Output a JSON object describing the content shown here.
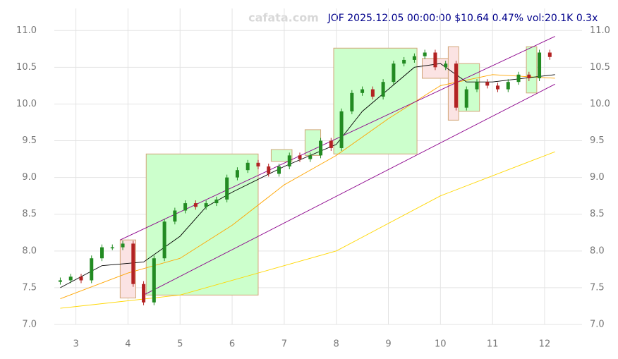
{
  "chart_data": {
    "type": "candlestick",
    "title": "JOF 2025.12.05 00:00:00 $10.64 0.47% vol:20.1K 0.3x",
    "watermark": "cafata.com",
    "x": [
      2.7,
      2.9,
      3.1,
      3.3,
      3.5,
      3.7,
      3.9,
      4.1,
      4.3,
      4.5,
      4.7,
      4.9,
      5.1,
      5.3,
      5.5,
      5.7,
      5.9,
      6.1,
      6.3,
      6.5,
      6.7,
      6.9,
      7.1,
      7.3,
      7.5,
      7.7,
      7.9,
      8.1,
      8.3,
      8.5,
      8.7,
      8.9,
      9.1,
      9.3,
      9.5,
      9.7,
      9.9,
      10.1,
      10.3,
      10.5,
      10.7,
      10.9,
      11.1,
      11.3,
      11.5,
      11.7,
      11.9,
      12.1
    ],
    "open": [
      7.58,
      7.6,
      7.65,
      7.6,
      7.9,
      8.05,
      8.05,
      8.1,
      7.55,
      7.3,
      7.9,
      8.4,
      8.55,
      8.65,
      8.6,
      8.65,
      8.7,
      9.0,
      9.1,
      9.2,
      9.15,
      9.05,
      9.15,
      9.3,
      9.25,
      9.3,
      9.5,
      9.4,
      9.9,
      10.15,
      10.2,
      10.1,
      10.3,
      10.55,
      10.6,
      10.65,
      10.7,
      10.5,
      10.55,
      9.95,
      10.2,
      10.3,
      10.25,
      10.2,
      10.3,
      10.4,
      10.35,
      10.7
    ],
    "close": [
      7.6,
      7.65,
      7.6,
      7.9,
      8.05,
      8.05,
      8.1,
      7.55,
      7.3,
      7.9,
      8.4,
      8.55,
      8.65,
      8.6,
      8.65,
      8.7,
      9.0,
      9.1,
      9.2,
      9.15,
      9.05,
      9.15,
      9.3,
      9.25,
      9.3,
      9.5,
      9.4,
      9.9,
      10.15,
      10.2,
      10.1,
      10.3,
      10.55,
      10.6,
      10.65,
      10.7,
      10.5,
      10.55,
      9.95,
      10.2,
      10.3,
      10.25,
      10.2,
      10.3,
      10.4,
      10.35,
      10.7,
      10.64
    ],
    "up_color": "#228b22",
    "down_color": "#b22222",
    "boxes": [
      {
        "x": [
          3.85,
          4.15
        ],
        "y": [
          7.36,
          8.15
        ],
        "color": "#fbe3e3"
      },
      {
        "x": [
          4.35,
          6.5
        ],
        "y": [
          7.4,
          9.32
        ],
        "color": "#ccffcc"
      },
      {
        "x": [
          6.75,
          7.15
        ],
        "y": [
          9.22,
          9.38
        ],
        "color": "#ccffcc"
      },
      {
        "x": [
          7.4,
          7.7
        ],
        "y": [
          9.3,
          9.65
        ],
        "color": "#ccffcc"
      },
      {
        "x": [
          7.95,
          9.55
        ],
        "y": [
          9.32,
          10.76
        ],
        "color": "#ccffcc"
      },
      {
        "x": [
          9.65,
          10.3
        ],
        "y": [
          10.35,
          10.62
        ],
        "color": "#fbe3e3"
      },
      {
        "x": [
          10.15,
          10.35
        ],
        "y": [
          9.78,
          10.78
        ],
        "color": "#fbe3e3"
      },
      {
        "x": [
          10.35,
          10.75
        ],
        "y": [
          9.9,
          10.55
        ],
        "color": "#ccffcc"
      },
      {
        "x": [
          11.65,
          11.85
        ],
        "y": [
          10.15,
          10.78
        ],
        "color": "#ccffcc"
      }
    ],
    "lines": [
      {
        "color": "#ffd700",
        "x": [
          2.7,
          5,
          8,
          10,
          12.2
        ],
        "values": [
          7.22,
          7.4,
          8.0,
          8.75,
          9.35
        ]
      },
      {
        "color": "#ffa500",
        "x": [
          2.7,
          4,
          5,
          6,
          7,
          8,
          9,
          10,
          11,
          12.2
        ],
        "values": [
          7.35,
          7.7,
          7.9,
          8.35,
          8.9,
          9.3,
          9.8,
          10.25,
          10.4,
          10.35
        ]
      },
      {
        "color": "#000000",
        "x": [
          2.7,
          3.5,
          4.3,
          5,
          5.5,
          6,
          7,
          8,
          8.5,
          9,
          9.5,
          10,
          10.5,
          11,
          12.2
        ],
        "values": [
          7.5,
          7.8,
          7.85,
          8.2,
          8.6,
          8.8,
          9.15,
          9.45,
          9.9,
          10.2,
          10.5,
          10.55,
          10.3,
          10.3,
          10.4
        ]
      },
      {
        "color": "#8b008b",
        "x": [
          3.85,
          12.2
        ],
        "values": [
          8.15,
          10.92
        ]
      },
      {
        "color": "#8b008b",
        "x": [
          4.3,
          12.2
        ],
        "values": [
          7.4,
          10.27
        ]
      }
    ],
    "xlim": [
      2.45,
      12.8
    ],
    "ylim": [
      7,
      11.3
    ],
    "xticks": [
      3,
      4,
      5,
      6,
      7,
      8,
      9,
      10,
      11,
      12
    ],
    "yticks": [
      {
        "value": 7,
        "label": "7.0"
      },
      7.5,
      {
        "value": 8,
        "label": "8.0"
      },
      8.5,
      {
        "value": 9,
        "label": "9.0"
      },
      9.5,
      {
        "value": 10,
        "label": "10.0"
      },
      10.5,
      {
        "value": 11,
        "label": "11.0"
      }
    ],
    "grid": true
  }
}
